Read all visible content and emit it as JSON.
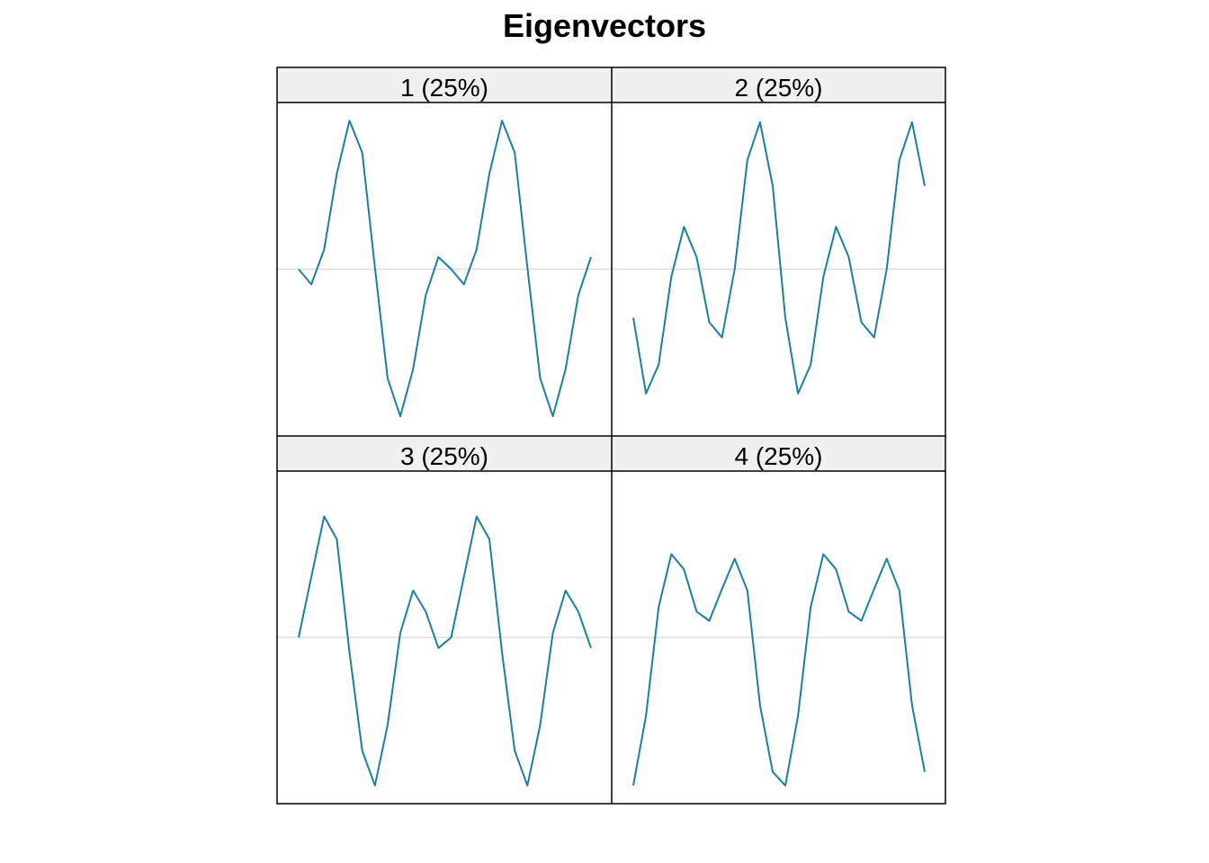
{
  "title": "Eigenvectors",
  "colors": {
    "line": "#1a7fa8",
    "zero_line": "#dddddd",
    "strip_background": "#f0f0f0",
    "border": "#000000"
  },
  "chart_data": {
    "type": "line",
    "title": "Eigenvectors",
    "xlabel": "",
    "ylabel": "",
    "grid": false,
    "legend": "none",
    "ylim": [
      -1.1,
      1.1
    ],
    "panels": [
      {
        "label": "1 (25%)",
        "values": [
          0.0,
          -0.1,
          0.13,
          0.63,
          0.98,
          0.77,
          0.01,
          -0.72,
          -0.97,
          -0.66,
          -0.17,
          0.08,
          0.0,
          -0.1,
          0.13,
          0.63,
          0.98,
          0.77,
          0.01,
          -0.72,
          -0.97,
          -0.66,
          -0.17,
          0.08
        ]
      },
      {
        "label": "2 (25%)",
        "values": [
          -0.32,
          -0.82,
          -0.63,
          -0.05,
          0.28,
          0.08,
          -0.35,
          -0.45,
          0.0,
          0.72,
          0.97,
          0.55,
          -0.32,
          -0.82,
          -0.63,
          -0.05,
          0.28,
          0.08,
          -0.35,
          -0.45,
          0.0,
          0.72,
          0.97,
          0.55
        ]
      },
      {
        "label": "3 (25%)",
        "values": [
          0.0,
          0.4,
          0.8,
          0.65,
          -0.1,
          -0.75,
          -0.98,
          -0.58,
          0.03,
          0.31,
          0.17,
          -0.07,
          0.0,
          0.4,
          0.8,
          0.65,
          -0.1,
          -0.75,
          -0.98,
          -0.58,
          0.03,
          0.31,
          0.17,
          -0.07
        ]
      },
      {
        "label": "4 (25%)",
        "values": [
          -0.98,
          -0.52,
          0.2,
          0.55,
          0.45,
          0.17,
          0.11,
          0.32,
          0.52,
          0.31,
          -0.45,
          -0.89,
          -0.98,
          -0.52,
          0.2,
          0.55,
          0.45,
          0.17,
          0.11,
          0.32,
          0.52,
          0.31,
          -0.45,
          -0.89
        ]
      }
    ]
  }
}
